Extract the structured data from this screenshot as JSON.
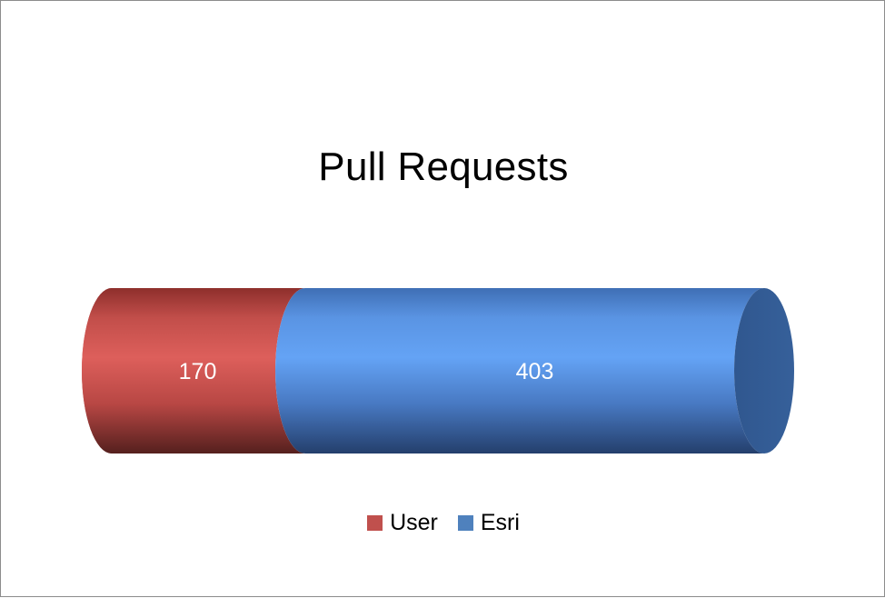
{
  "chart_data": {
    "type": "bar",
    "orientation": "horizontal",
    "stacked": true,
    "style": "3d-cylinder",
    "title": "Pull Requests",
    "categories": [
      ""
    ],
    "series": [
      {
        "name": "User",
        "values": [
          170
        ],
        "color": "#c0504d"
      },
      {
        "name": "Esri",
        "values": [
          403
        ],
        "color": "#4f81bd"
      }
    ],
    "legend_position": "bottom",
    "grid": false,
    "show_data_labels": true
  }
}
